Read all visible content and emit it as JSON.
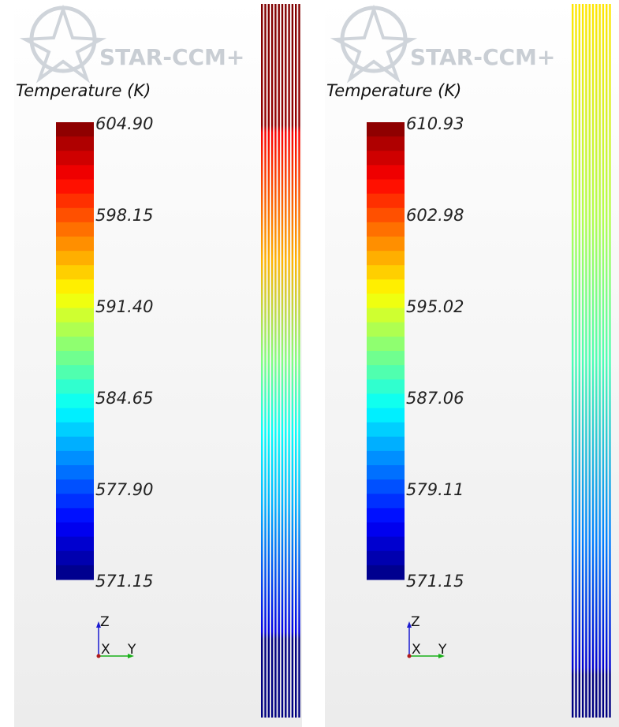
{
  "panels": [
    {
      "logo": "STAR-CCM+",
      "legend": {
        "title": "Temperature (K)",
        "labels": [
          "604.90",
          "598.15",
          "591.40",
          "584.65",
          "577.90",
          "571.15"
        ]
      },
      "axes": {
        "z": "Z",
        "x": "X",
        "y": "Y"
      }
    },
    {
      "logo": "STAR-CCM+",
      "legend": {
        "title": "Temperature (K)",
        "labels": [
          "610.93",
          "602.98",
          "595.02",
          "587.06",
          "579.11",
          "571.15"
        ]
      },
      "axes": {
        "z": "Z",
        "x": "X",
        "y": "Y"
      }
    }
  ]
}
